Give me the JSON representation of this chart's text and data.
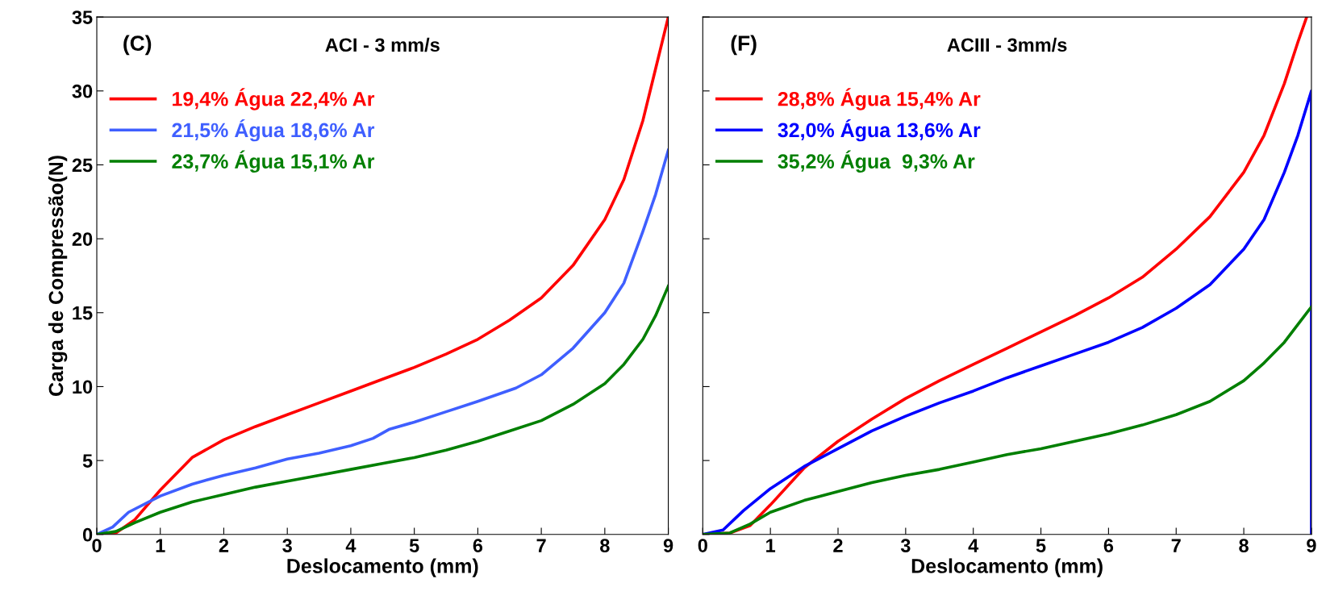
{
  "chart_data": [
    {
      "type": "line",
      "title": "ACI - 3 mm/s",
      "annotations": [
        "(C)"
      ],
      "xlabel": "Deslocamento (mm)",
      "ylabel": "Carga de Compressão(N)",
      "xlim": [
        0,
        9
      ],
      "ylim": [
        0,
        35
      ],
      "xticks": [
        0,
        1,
        2,
        3,
        4,
        5,
        6,
        7,
        8,
        9
      ],
      "yticks": [
        0,
        5,
        10,
        15,
        20,
        25,
        30,
        35
      ],
      "legend": "top left",
      "grid": false,
      "series": [
        {
          "name": "19,4% Água 22,4% Ar",
          "color": "#ff0000",
          "x": [
            0,
            0.3,
            0.6,
            1,
            1.5,
            2,
            2.5,
            3,
            3.5,
            4,
            4.5,
            5,
            5.5,
            6,
            6.5,
            7,
            7.5,
            8,
            8.3,
            8.6,
            8.8,
            9
          ],
          "values": [
            0,
            0.1,
            1,
            3,
            5.2,
            6.4,
            7.3,
            8.1,
            8.9,
            9.7,
            10.5,
            11.3,
            12.2,
            13.2,
            14.5,
            16,
            18.2,
            21.3,
            24,
            28,
            31.5,
            35
          ]
        },
        {
          "name": "21,5% Água 18,6% Ar",
          "color": "#3f5fff",
          "x": [
            0,
            0.25,
            0.5,
            1,
            1.5,
            2,
            2.5,
            3,
            3.5,
            4,
            4.35,
            4.6,
            5,
            5.5,
            6,
            6.6,
            7,
            7.5,
            8,
            8.3,
            8.6,
            8.8,
            9
          ],
          "values": [
            0,
            0.5,
            1.5,
            2.6,
            3.4,
            4,
            4.5,
            5.1,
            5.5,
            6,
            6.5,
            7.1,
            7.6,
            8.3,
            9,
            9.9,
            10.8,
            12.6,
            15,
            17,
            20.5,
            23,
            26
          ]
        },
        {
          "name": "23,7% Água 15,1% Ar",
          "color": "#007f00",
          "x": [
            0,
            0.3,
            0.6,
            1,
            1.5,
            2,
            2.5,
            3,
            3.5,
            4,
            4.5,
            5,
            5.5,
            6,
            6.5,
            7,
            7.5,
            8,
            8.3,
            8.6,
            8.8,
            9
          ],
          "values": [
            0,
            0.2,
            0.8,
            1.5,
            2.2,
            2.7,
            3.2,
            3.6,
            4,
            4.4,
            4.8,
            5.2,
            5.7,
            6.3,
            7,
            7.7,
            8.8,
            10.2,
            11.5,
            13.2,
            14.8,
            16.8
          ]
        }
      ]
    },
    {
      "type": "line",
      "title": "ACIII - 3mm/s",
      "annotations": [
        "(F)"
      ],
      "xlabel": "Deslocamento (mm)",
      "xlim": [
        0,
        9
      ],
      "ylim": [
        0,
        35
      ],
      "xticks": [
        0,
        1,
        2,
        3,
        4,
        5,
        6,
        7,
        8,
        9
      ],
      "yticks": [
        0,
        5,
        10,
        15,
        20,
        25,
        30,
        35
      ],
      "tick_labels": "x",
      "legend": "top left",
      "grid": false,
      "series": [
        {
          "name": "28,8% Água 15,4% Ar",
          "color": "#ff0000",
          "x": [
            0,
            0.4,
            0.7,
            1,
            1.5,
            2,
            2.5,
            3,
            3.5,
            4,
            4.5,
            5,
            5.5,
            6,
            6.5,
            7,
            7.5,
            8,
            8.3,
            8.6,
            8.8,
            8.93
          ],
          "values": [
            0,
            0.1,
            0.6,
            2,
            4.5,
            6.3,
            7.8,
            9.2,
            10.4,
            11.5,
            12.6,
            13.7,
            14.8,
            16,
            17.4,
            19.3,
            21.5,
            24.5,
            27,
            30.5,
            33.3,
            35
          ]
        },
        {
          "name": "32,0% Água 13,6% Ar",
          "color": "#0000ff",
          "x": [
            0,
            0.3,
            0.6,
            1,
            1.5,
            2,
            2.5,
            3,
            3.5,
            4,
            4.5,
            5,
            5.5,
            6,
            6.5,
            7,
            7.5,
            8,
            8.3,
            8.6,
            8.8,
            9,
            9
          ],
          "values": [
            0,
            0.3,
            1.6,
            3.1,
            4.6,
            5.8,
            7,
            8,
            8.9,
            9.7,
            10.6,
            11.4,
            12.2,
            13,
            14,
            15.3,
            16.9,
            19.3,
            21.3,
            24.5,
            27,
            30,
            0
          ]
        },
        {
          "name": "35,2% Água  9,3% Ar",
          "color": "#007f00",
          "x": [
            0,
            0.4,
            0.7,
            1,
            1.5,
            2,
            2.5,
            3,
            3.5,
            4,
            4.5,
            5,
            5.5,
            6,
            6.5,
            7,
            7.5,
            8,
            8.3,
            8.6,
            8.8,
            9
          ],
          "values": [
            0,
            0.1,
            0.7,
            1.5,
            2.3,
            2.9,
            3.5,
            4,
            4.4,
            4.9,
            5.4,
            5.8,
            6.3,
            6.8,
            7.4,
            8.1,
            9,
            10.4,
            11.6,
            13,
            14.2,
            15.4
          ]
        }
      ]
    }
  ]
}
